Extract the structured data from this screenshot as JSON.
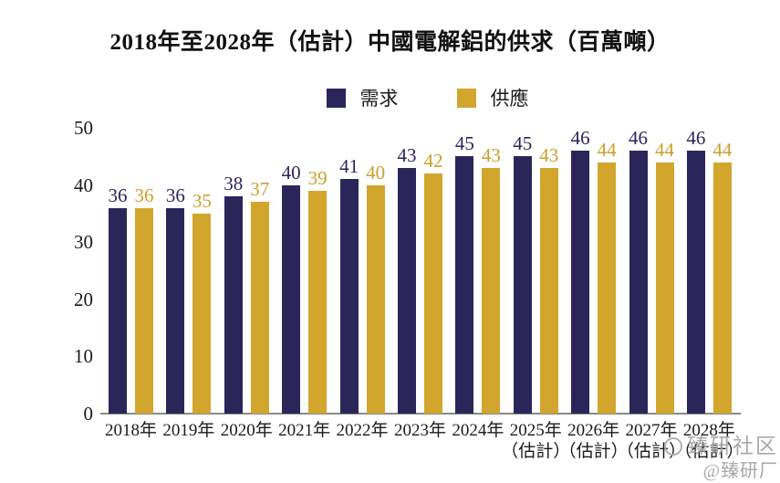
{
  "title": "2018年至2028年（估計）中國電解鋁的供求（百萬噸）",
  "legend": {
    "demand": "需求",
    "supply": "供應"
  },
  "colors": {
    "demand": "#2b2659",
    "supply": "#d2a52d",
    "demand_label": "#2b2659",
    "supply_label": "#c9a02c",
    "axis_line": "#8a8a8a",
    "watermark": "#a8a8a8"
  },
  "watermark": {
    "line1": "臻研社区",
    "line2": "@臻研厂"
  },
  "chart_data": {
    "type": "bar",
    "title": "2018年至2028年（估計）中國電解鋁的供求（百萬噸）",
    "unit": "百萬噸",
    "categories": [
      "2018年",
      "2019年",
      "2020年",
      "2021年",
      "2022年",
      "2023年",
      "2024年",
      "2025年（估計）",
      "2026年（估計）",
      "2027年（估計）",
      "2028年（估計）"
    ],
    "categories_lines": [
      [
        "2018年"
      ],
      [
        "2019年"
      ],
      [
        "2020年"
      ],
      [
        "2021年"
      ],
      [
        "2022年"
      ],
      [
        "2023年"
      ],
      [
        "2024年"
      ],
      [
        "2025年",
        "（估計）"
      ],
      [
        "2026年",
        "（估計）"
      ],
      [
        "2027年",
        "（估計）"
      ],
      [
        "2028年",
        "（估計）"
      ]
    ],
    "series": [
      {
        "name": "需求",
        "color": "#2b2659",
        "values": [
          36,
          36,
          38,
          40,
          41,
          43,
          45,
          45,
          46,
          46,
          46
        ]
      },
      {
        "name": "供應",
        "color": "#d2a52d",
        "values": [
          36,
          35,
          37,
          39,
          40,
          42,
          43,
          43,
          44,
          44,
          44
        ]
      }
    ],
    "ylim": [
      0,
      50
    ],
    "yticks": [
      0,
      10,
      20,
      30,
      40,
      50
    ],
    "grid": false,
    "legend_position": "top",
    "data_labels": true
  }
}
